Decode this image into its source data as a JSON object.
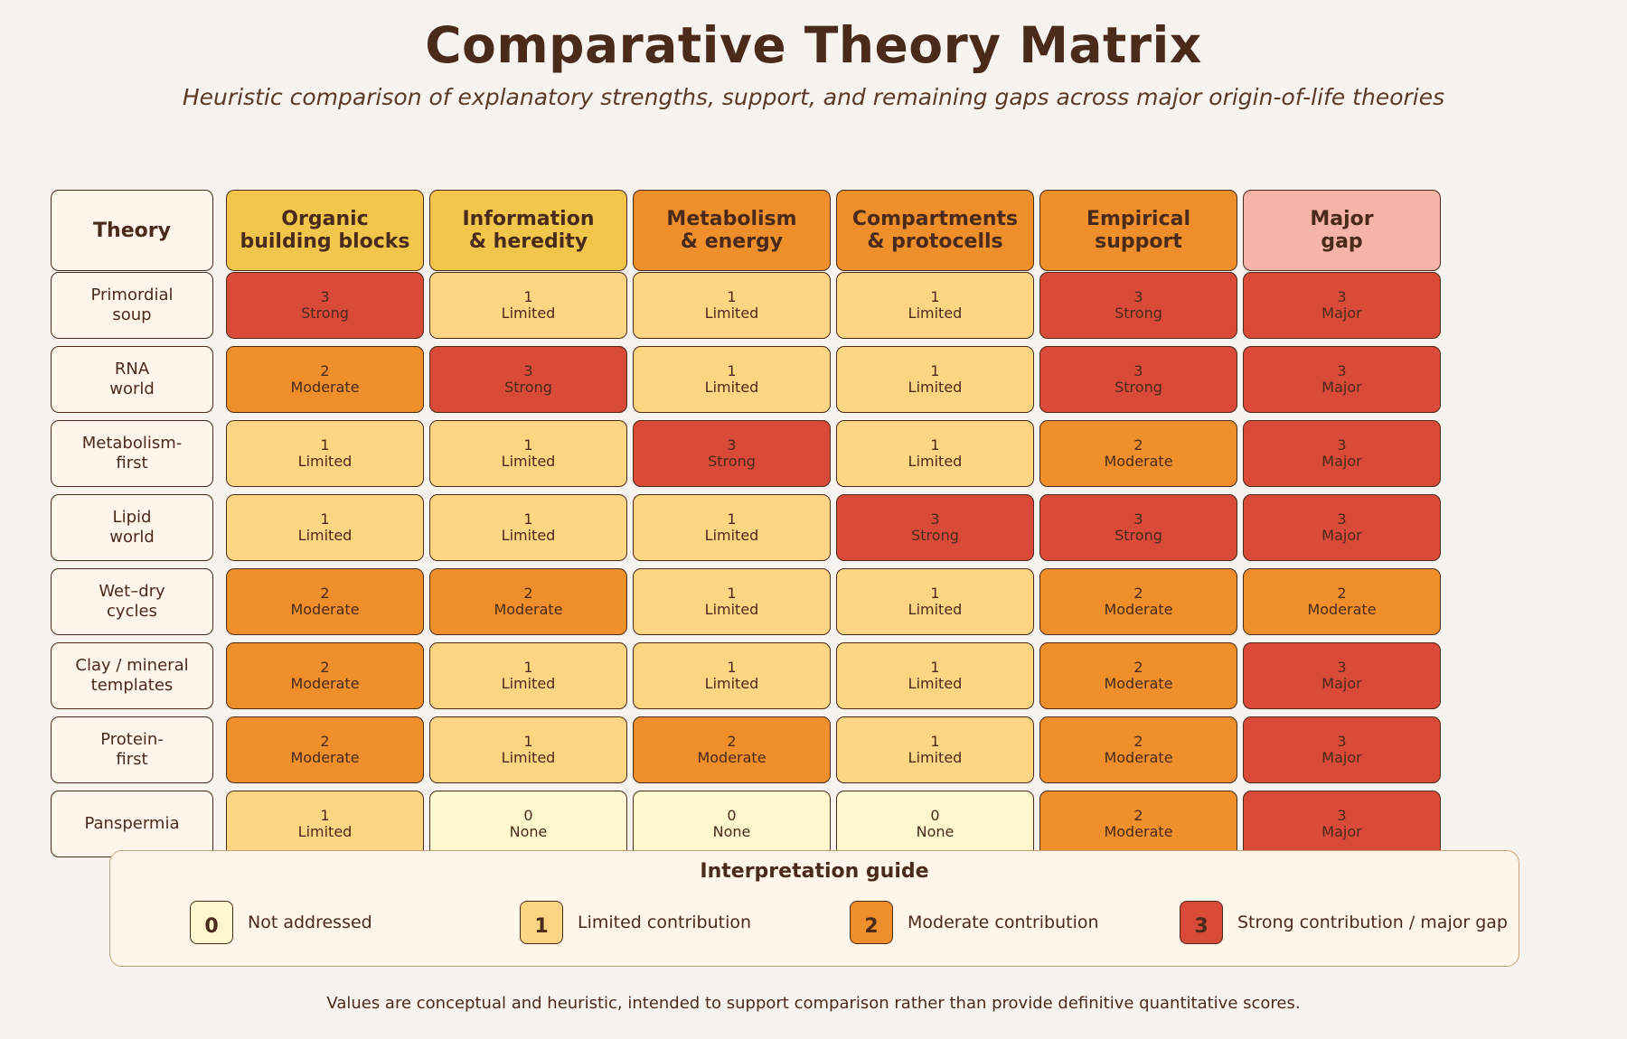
{
  "header": {
    "title": "Comparative Theory Matrix",
    "subtitle": "Heuristic comparison of explanatory strengths, support, and remaining gaps across major origin-of-life theories"
  },
  "chart_data": {
    "type": "heatmap",
    "row_header": "Theory",
    "columns": [
      {
        "label": "Organic\nbuilding blocks",
        "color": "#f2c54b"
      },
      {
        "label": "Information\n& heredity",
        "color": "#f2c54b"
      },
      {
        "label": "Metabolism\n& energy",
        "color": "#ef8f2b"
      },
      {
        "label": "Compartments\n& protocells",
        "color": "#ef8f2b"
      },
      {
        "label": "Empirical\nsupport",
        "color": "#ef8f2b"
      },
      {
        "label": "Major\ngap",
        "color": "#f5b4a7"
      }
    ],
    "rows": [
      {
        "label": "Primordial\nsoup",
        "values": [
          3,
          1,
          1,
          1,
          3,
          3
        ],
        "labels": [
          "Strong",
          "Limited",
          "Limited",
          "Limited",
          "Strong",
          "Major"
        ]
      },
      {
        "label": "RNA\nworld",
        "values": [
          2,
          3,
          1,
          1,
          3,
          3
        ],
        "labels": [
          "Moderate",
          "Strong",
          "Limited",
          "Limited",
          "Strong",
          "Major"
        ]
      },
      {
        "label": "Metabolism-\nfirst",
        "values": [
          1,
          1,
          3,
          1,
          2,
          3
        ],
        "labels": [
          "Limited",
          "Limited",
          "Strong",
          "Limited",
          "Moderate",
          "Major"
        ]
      },
      {
        "label": "Lipid\nworld",
        "values": [
          1,
          1,
          1,
          3,
          3,
          3
        ],
        "labels": [
          "Limited",
          "Limited",
          "Limited",
          "Strong",
          "Strong",
          "Major"
        ]
      },
      {
        "label": "Wet–dry\ncycles",
        "values": [
          2,
          2,
          1,
          1,
          2,
          2
        ],
        "labels": [
          "Moderate",
          "Moderate",
          "Limited",
          "Limited",
          "Moderate",
          "Moderate"
        ]
      },
      {
        "label": "Clay / mineral\ntemplates",
        "values": [
          2,
          1,
          1,
          1,
          2,
          3
        ],
        "labels": [
          "Moderate",
          "Limited",
          "Limited",
          "Limited",
          "Moderate",
          "Major"
        ]
      },
      {
        "label": "Protein-\nfirst",
        "values": [
          2,
          1,
          2,
          1,
          2,
          3
        ],
        "labels": [
          "Moderate",
          "Limited",
          "Moderate",
          "Limited",
          "Moderate",
          "Major"
        ]
      },
      {
        "label": "Panspermia",
        "values": [
          1,
          0,
          0,
          0,
          2,
          3
        ],
        "labels": [
          "Limited",
          "None",
          "None",
          "None",
          "Moderate",
          "Major"
        ]
      }
    ],
    "scale_colors": {
      "0": "#fff8cf",
      "1": "#fed683",
      "2": "#ef8f2b",
      "3": "#d94a38"
    },
    "value_range": [
      0,
      3
    ]
  },
  "legend": {
    "title": "Interpretation guide",
    "items": [
      {
        "value": "0",
        "label": "Not addressed",
        "color": "#fff8cf"
      },
      {
        "value": "1",
        "label": "Limited contribution",
        "color": "#fed683"
      },
      {
        "value": "2",
        "label": "Moderate contribution",
        "color": "#ef8f2b"
      },
      {
        "value": "3",
        "label": "Strong contribution / major gap",
        "color": "#d94a38"
      }
    ]
  },
  "footnote": "Values are conceptual and heuristic, intended to support comparison rather than provide definitive quantitative scores."
}
